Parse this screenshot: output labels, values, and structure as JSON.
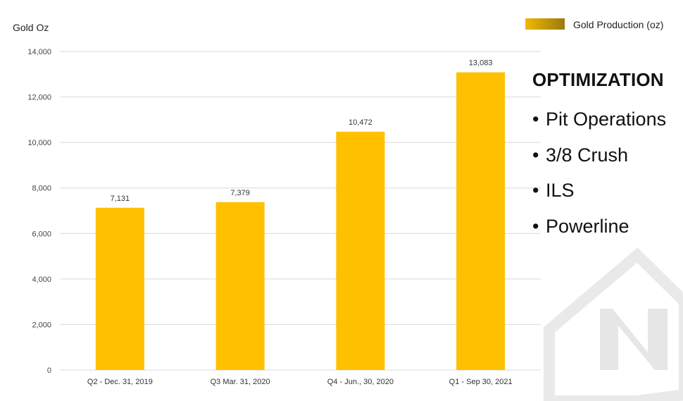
{
  "colors": {
    "bar": "#FFC000",
    "legend_swatch_start": "#F2B800",
    "legend_swatch_end": "#9A7A10",
    "grid": "#D9D9D9",
    "logo": "#E6E6E6"
  },
  "panel": {
    "title": "OPTIMIZATION",
    "bullet_glyph": "•",
    "items": [
      "Pit Operations",
      "3/8 Crush",
      "ILS",
      "Powerline"
    ]
  },
  "logo": {
    "name": "company-logo"
  },
  "chart_data": {
    "type": "bar",
    "title": "",
    "xlabel": "",
    "ylabel": "Gold Oz",
    "categories": [
      "Q2 - Dec. 31, 2019",
      "Q3 Mar. 31, 2020",
      "Q4 - Jun., 30, 2020",
      "Q1 - Sep 30, 2021"
    ],
    "series": [
      {
        "name": "Gold Production (oz)",
        "values": [
          7131,
          7379,
          10472,
          13083
        ],
        "labels": [
          "7,131",
          "7,379",
          "10,472",
          "13,083"
        ]
      }
    ],
    "ylim": [
      0,
      14000
    ],
    "yticks": [
      0,
      2000,
      4000,
      6000,
      8000,
      10000,
      12000,
      14000
    ],
    "ytick_labels": [
      "0",
      "2,000",
      "4,000",
      "6,000",
      "8,000",
      "10,000",
      "12,000",
      "14,000"
    ],
    "grid": true,
    "legend": "top-right"
  }
}
